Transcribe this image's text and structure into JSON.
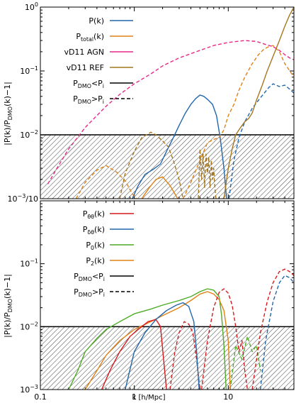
{
  "colors": {
    "blue": "#2166ac",
    "orange": "#e08214",
    "magenta": "#e7298a",
    "olive": "#a6761d",
    "red": "#d7191c",
    "green": "#4dac26",
    "black": "#000000"
  },
  "chart_data": [
    {
      "type": "line",
      "xlabel": "",
      "ylabel": "|P(k)/P_DMO(k)−1|",
      "xscale": "log",
      "yscale": "log",
      "xlim": [
        0.1,
        50
      ],
      "ylim": [
        0.001,
        1
      ],
      "shaded_region": {
        "from": 0.001,
        "to": 0.01,
        "pattern": "hatched"
      },
      "yticks": [
        {
          "value": 1,
          "label": "10⁰"
        },
        {
          "value": 0.1,
          "label": "10⁻¹"
        },
        {
          "value": 0.01,
          "label": "10⁻²"
        },
        {
          "value": 0.001,
          "label": "10⁻³/10"
        }
      ],
      "legend": {
        "placement": "top-left",
        "entries": [
          {
            "label": "P(k)",
            "color": "blue",
            "dash": "solid"
          },
          {
            "label": "P_total(k)",
            "color": "orange",
            "dash": "solid"
          },
          {
            "label": "vD11 AGN",
            "color": "magenta",
            "dash": "solid"
          },
          {
            "label": "vD11 REF",
            "color": "olive",
            "dash": "solid"
          },
          {
            "label": "P_DMO<P_i",
            "color": "black",
            "dash": "solid"
          },
          {
            "label": "P_DMO>P_i",
            "color": "black",
            "dash": "dashed"
          }
        ]
      },
      "series": [
        {
          "name": "P(k)",
          "color": "blue",
          "dash": "solid",
          "x": [
            0.95,
            1.1,
            1.3,
            1.6,
            1.9,
            2.2,
            2.6,
            3.0,
            3.5,
            4.0,
            4.5,
            5.0,
            5.5,
            6.0,
            6.8,
            7.5,
            8.2,
            9.0,
            9.6
          ],
          "y": [
            0.001,
            0.0016,
            0.0024,
            0.0029,
            0.0035,
            0.0055,
            0.009,
            0.014,
            0.022,
            0.03,
            0.037,
            0.042,
            0.04,
            0.036,
            0.03,
            0.02,
            0.009,
            0.003,
            0.001
          ]
        },
        {
          "name": "P(k)",
          "color": "blue",
          "dash": "dashed",
          "x": [
            10.2,
            11.5,
            13,
            15,
            18,
            22,
            27,
            30,
            35,
            40,
            45,
            50
          ],
          "y": [
            0.001,
            0.004,
            0.009,
            0.016,
            0.026,
            0.038,
            0.055,
            0.063,
            0.057,
            0.06,
            0.052,
            0.045
          ]
        },
        {
          "name": "P_total(k)",
          "color": "orange",
          "dash": "dashed",
          "x": [
            0.24,
            0.3,
            0.4,
            0.5,
            0.65,
            0.8,
            0.95,
            1.05
          ],
          "y": [
            0.001,
            0.0018,
            0.0028,
            0.0033,
            0.0026,
            0.0019,
            0.0012,
            0.001
          ]
        },
        {
          "name": "P_total(k)",
          "color": "orange",
          "dash": "solid",
          "x": [
            1.2,
            1.45,
            1.7,
            2.0,
            2.4,
            2.9
          ],
          "y": [
            0.001,
            0.0015,
            0.002,
            0.0022,
            0.0016,
            0.001
          ]
        },
        {
          "name": "P_total(k)",
          "color": "orange",
          "dash": "dashed",
          "x": [
            3.3,
            4.0,
            5.0,
            6.0,
            7.0,
            8.0,
            9.0,
            10.0,
            11.5,
            13,
            15,
            18,
            21,
            24,
            27,
            30,
            35,
            40,
            50
          ],
          "y": [
            0.001,
            0.0018,
            0.004,
            0.0075,
            0.0085,
            0.009,
            0.012,
            0.02,
            0.03,
            0.05,
            0.08,
            0.13,
            0.18,
            0.22,
            0.24,
            0.25,
            0.2,
            0.13,
            0.08
          ]
        },
        {
          "name": "vD11 AGN",
          "color": "magenta",
          "dash": "dashed",
          "x": [
            0.12,
            0.15,
            0.2,
            0.3,
            0.5,
            0.7,
            1.0,
            1.5,
            2.0,
            3.0,
            5.0,
            7.0,
            10,
            15,
            20,
            25,
            30,
            35,
            40,
            45,
            50
          ],
          "y": [
            0.0017,
            0.003,
            0.006,
            0.013,
            0.028,
            0.043,
            0.063,
            0.09,
            0.12,
            0.16,
            0.21,
            0.25,
            0.28,
            0.3,
            0.29,
            0.26,
            0.24,
            0.21,
            0.18,
            0.16,
            0.15
          ]
        },
        {
          "name": "vD11 REF",
          "color": "olive",
          "dash": "dashed",
          "x": [
            0.7,
            0.8,
            1.0,
            1.2,
            1.5,
            1.7,
            2.0,
            2.3,
            2.6,
            3.0,
            3.3
          ],
          "y": [
            0.001,
            0.0025,
            0.0055,
            0.009,
            0.011,
            0.01,
            0.008,
            0.0065,
            0.004,
            0.002,
            0.001
          ]
        },
        {
          "name": "vD11 REF",
          "color": "olive",
          "dash": "dashed",
          "x": [
            4.8,
            5.0,
            5.2,
            5.4,
            5.6,
            5.8,
            6.0,
            6.2,
            6.4,
            6.6,
            6.8,
            7.0,
            7.2,
            7.4
          ],
          "y": [
            0.001,
            0.006,
            0.002,
            0.005,
            0.0015,
            0.005,
            0.0025,
            0.0045,
            0.0015,
            0.004,
            0.002,
            0.003,
            0.0015,
            0.001
          ]
        },
        {
          "name": "vD11 REF",
          "color": "olive",
          "dash": "solid",
          "x": [
            9.0,
            10,
            11,
            12,
            13.5,
            15,
            16.5,
            18,
            20,
            23,
            26,
            30,
            35,
            40,
            45,
            50
          ],
          "y": [
            0.001,
            0.003,
            0.006,
            0.01,
            0.013,
            0.016,
            0.018,
            0.022,
            0.035,
            0.06,
            0.1,
            0.17,
            0.3,
            0.5,
            0.75,
            1.0
          ]
        }
      ]
    },
    {
      "type": "line",
      "xlabel": "k [h/Mpc]",
      "ylabel": "|P(k)/P_DMO(k)−1|",
      "xscale": "log",
      "yscale": "log",
      "xlim": [
        0.1,
        50
      ],
      "ylim": [
        0.001,
        1
      ],
      "shaded_region": {
        "from": 0.001,
        "to": 0.01,
        "pattern": "hatched"
      },
      "xticks": [
        {
          "value": 0.1,
          "label": "0.1"
        },
        {
          "value": 1,
          "label": "1"
        },
        {
          "value": 10,
          "label": "10"
        }
      ],
      "yticks": [
        {
          "value": 0.1,
          "label": "10⁻¹"
        },
        {
          "value": 0.01,
          "label": "10⁻²"
        },
        {
          "value": 0.001,
          "label": "10⁻³"
        }
      ],
      "legend": {
        "placement": "top-left",
        "entries": [
          {
            "label": "P_θθ(k)",
            "color": "red",
            "dash": "solid"
          },
          {
            "label": "P_δθ(k)",
            "color": "blue",
            "dash": "solid"
          },
          {
            "label": "P_0(k)",
            "color": "green",
            "dash": "solid"
          },
          {
            "label": "P_2(k)",
            "color": "orange",
            "dash": "solid"
          },
          {
            "label": "P_DMO<P_i",
            "color": "black",
            "dash": "solid"
          },
          {
            "label": "P_DMO>P_i",
            "color": "black",
            "dash": "dashed"
          }
        ]
      },
      "series": [
        {
          "name": "P_0(k)",
          "color": "green",
          "dash": "solid",
          "x": [
            0.2,
            0.25,
            0.3,
            0.4,
            0.5,
            0.7,
            1.0,
            1.5,
            2.0,
            3.0,
            4.0,
            5.0,
            6.0,
            7.0,
            8.0,
            8.5,
            9.0,
            9.5
          ],
          "y": [
            0.001,
            0.002,
            0.004,
            0.0065,
            0.009,
            0.012,
            0.016,
            0.019,
            0.022,
            0.026,
            0.03,
            0.036,
            0.04,
            0.038,
            0.03,
            0.015,
            0.005,
            0.001
          ]
        },
        {
          "name": "P_0(k)",
          "color": "green",
          "dash": "dashed",
          "x": [
            10.5,
            12,
            14,
            16,
            18,
            20,
            22
          ],
          "y": [
            0.001,
            0.005,
            0.003,
            0.007,
            0.004,
            0.005,
            0.002
          ]
        },
        {
          "name": "P_2(k)",
          "color": "orange",
          "dash": "solid",
          "x": [
            0.3,
            0.4,
            0.5,
            0.7,
            1.0,
            1.5,
            2.0,
            3.0,
            4.0,
            5.0,
            6.0,
            7.0,
            8.0,
            9.0,
            10,
            10.5
          ],
          "y": [
            0.001,
            0.002,
            0.0035,
            0.006,
            0.009,
            0.012,
            0.015,
            0.02,
            0.026,
            0.033,
            0.036,
            0.033,
            0.027,
            0.018,
            0.006,
            0.001
          ]
        },
        {
          "name": "P_θθ(k)",
          "color": "red",
          "dash": "solid",
          "x": [
            0.45,
            0.55,
            0.7,
            0.9,
            1.1,
            1.4,
            1.7,
            1.9,
            2.05,
            2.2
          ],
          "y": [
            0.001,
            0.002,
            0.004,
            0.007,
            0.009,
            0.012,
            0.013,
            0.01,
            0.003,
            0.001
          ]
        },
        {
          "name": "P_θθ(k)",
          "color": "red",
          "dash": "dashed",
          "x": [
            2.4,
            2.7,
            3.0,
            3.4,
            3.8,
            4.2,
            4.6,
            5.0
          ],
          "y": [
            0.001,
            0.004,
            0.008,
            0.012,
            0.011,
            0.008,
            0.003,
            0.001
          ]
        },
        {
          "name": "P_θθ(k)",
          "color": "red",
          "dash": "dashed",
          "x": [
            5.2,
            6.0,
            7.0,
            8.0,
            9.0,
            10,
            11,
            12,
            13,
            14,
            15,
            16
          ],
          "y": [
            0.001,
            0.006,
            0.02,
            0.035,
            0.04,
            0.034,
            0.022,
            0.01,
            0.004,
            0.006,
            0.002,
            0.001
          ]
        },
        {
          "name": "P_θθ(k)",
          "color": "red",
          "dash": "dashed",
          "x": [
            18,
            22,
            26,
            30,
            35,
            40,
            45,
            50
          ],
          "y": [
            0.001,
            0.008,
            0.025,
            0.05,
            0.075,
            0.082,
            0.075,
            0.065
          ]
        },
        {
          "name": "P_δθ(k)",
          "color": "blue",
          "dash": "solid",
          "x": [
            0.8,
            1.0,
            1.3,
            1.7,
            2.2,
            2.8,
            3.3,
            3.8,
            4.3,
            4.6,
            4.9
          ],
          "y": [
            0.001,
            0.004,
            0.008,
            0.013,
            0.018,
            0.022,
            0.024,
            0.021,
            0.012,
            0.004,
            0.001
          ]
        },
        {
          "name": "P_δθ(k)",
          "color": "blue",
          "dash": "dashed",
          "x": [
            22,
            25,
            30,
            35,
            40,
            45,
            50
          ],
          "y": [
            0.001,
            0.006,
            0.025,
            0.05,
            0.065,
            0.06,
            0.05
          ]
        }
      ]
    }
  ]
}
